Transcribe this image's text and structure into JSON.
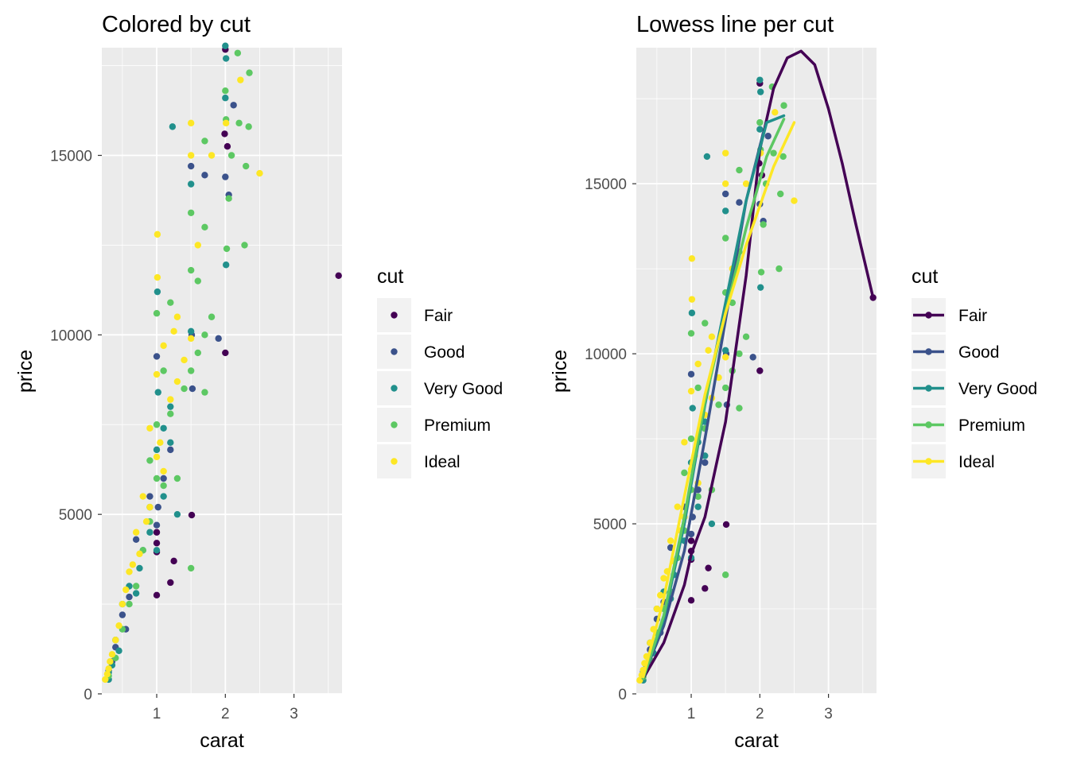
{
  "palette": {
    "Fair": "#440154",
    "Good": "#3b528b",
    "Very Good": "#21908c",
    "Premium": "#5dc863",
    "Ideal": "#fde725",
    "panel_background": "#ebebeb",
    "grid": "#ffffff",
    "tick_text": "#4d4d4d"
  },
  "chart_data": [
    {
      "type": "scatter",
      "title": "Colored by cut",
      "xlabel": "carat",
      "ylabel": "price",
      "xlim": [
        0.2,
        3.7
      ],
      "ylim": [
        0,
        18000
      ],
      "xticks": [
        1,
        2,
        3
      ],
      "yticks": [
        0,
        5000,
        10000,
        15000
      ],
      "grid": true,
      "legend": {
        "title": "cut",
        "position": "right",
        "keys": "point",
        "entries": [
          "Fair",
          "Good",
          "Very Good",
          "Premium",
          "Ideal"
        ]
      },
      "series": [
        {
          "name": "Fair",
          "points": [
            [
              2.0,
              17950
            ],
            [
              1.99,
              15600
            ],
            [
              2.0,
              9500
            ],
            [
              1.51,
              4980
            ],
            [
              1.25,
              3700
            ],
            [
              1.2,
              3100
            ],
            [
              1.0,
              2750
            ],
            [
              1.0,
              3950
            ],
            [
              1.0,
              4500
            ],
            [
              3.65,
              11650
            ],
            [
              2.03,
              15250
            ],
            [
              1.0,
              4200
            ]
          ]
        },
        {
          "name": "Good",
          "points": [
            [
              2.12,
              16400
            ],
            [
              1.7,
              14450
            ],
            [
              2.05,
              13900
            ],
            [
              2.0,
              14400
            ],
            [
              1.5,
              14700
            ],
            [
              1.9,
              9900
            ],
            [
              1.51,
              10000
            ],
            [
              1.0,
              9400
            ],
            [
              1.0,
              4700
            ],
            [
              0.7,
              4300
            ],
            [
              0.9,
              5500
            ],
            [
              1.02,
              5200
            ],
            [
              0.5,
              2200
            ],
            [
              0.55,
              1800
            ],
            [
              0.35,
              900
            ],
            [
              1.2,
              6800
            ],
            [
              0.4,
              1300
            ],
            [
              0.6,
              2700
            ],
            [
              0.3,
              650
            ],
            [
              1.1,
              6000
            ],
            [
              1.52,
              8500
            ]
          ]
        },
        {
          "name": "Very Good",
          "points": [
            [
              2.0,
              18050
            ],
            [
              2.01,
              17700
            ],
            [
              1.23,
              15800
            ],
            [
              1.5,
              14200
            ],
            [
              2.0,
              16600
            ],
            [
              2.01,
              11950
            ],
            [
              1.01,
              11200
            ],
            [
              1.2,
              8000
            ],
            [
              1.5,
              10100
            ],
            [
              1.02,
              8400
            ],
            [
              1.1,
              7400
            ],
            [
              0.9,
              5200
            ],
            [
              0.8,
              4000
            ],
            [
              1.0,
              6800
            ],
            [
              0.6,
              3000
            ],
            [
              0.5,
              2500
            ],
            [
              0.4,
              1500
            ],
            [
              0.3,
              600
            ],
            [
              0.35,
              800
            ],
            [
              1.3,
              5000
            ],
            [
              1.0,
              4000
            ],
            [
              0.75,
              3500
            ],
            [
              0.7,
              2800
            ],
            [
              1.1,
              5500
            ],
            [
              0.9,
              4500
            ],
            [
              0.3,
              400
            ],
            [
              0.45,
              1200
            ],
            [
              1.2,
              7000
            ]
          ]
        },
        {
          "name": "Premium",
          "points": [
            [
              2.18,
              17850
            ],
            [
              2.35,
              17300
            ],
            [
              2.0,
              16800
            ],
            [
              2.34,
              15800
            ],
            [
              2.2,
              15900
            ],
            [
              1.7,
              15400
            ],
            [
              2.09,
              15000
            ],
            [
              2.28,
              12500
            ],
            [
              2.02,
              12400
            ],
            [
              2.05,
              13800
            ],
            [
              1.5,
              13400
            ],
            [
              1.7,
              13000
            ],
            [
              1.5,
              11800
            ],
            [
              1.6,
              11500
            ],
            [
              1.2,
              10900
            ],
            [
              1.0,
              10600
            ],
            [
              1.7,
              10000
            ],
            [
              1.5,
              9000
            ],
            [
              1.7,
              8400
            ],
            [
              1.5,
              3500
            ],
            [
              1.2,
              7800
            ],
            [
              1.0,
              7500
            ],
            [
              0.9,
              6500
            ],
            [
              1.3,
              6000
            ],
            [
              1.1,
              5800
            ],
            [
              0.8,
              4000
            ],
            [
              0.9,
              4800
            ],
            [
              0.6,
              2500
            ],
            [
              0.5,
              1800
            ],
            [
              0.4,
              1000
            ],
            [
              0.7,
              3000
            ],
            [
              1.4,
              8500
            ],
            [
              1.6,
              9500
            ],
            [
              1.1,
              9000
            ],
            [
              0.3,
              500
            ],
            [
              1.0,
              6000
            ],
            [
              1.8,
              10500
            ],
            [
              2.3,
              14700
            ],
            [
              2.01,
              16000
            ]
          ]
        },
        {
          "name": "Ideal",
          "points": [
            [
              2.22,
              17100
            ],
            [
              2.01,
              15900
            ],
            [
              1.5,
              15900
            ],
            [
              1.8,
              15000
            ],
            [
              2.5,
              14500
            ],
            [
              1.5,
              15000
            ],
            [
              1.6,
              12500
            ],
            [
              1.01,
              12800
            ],
            [
              1.01,
              11600
            ],
            [
              1.3,
              10500
            ],
            [
              1.5,
              9900
            ],
            [
              1.1,
              9700
            ],
            [
              1.0,
              8900
            ],
            [
              1.2,
              8200
            ],
            [
              0.9,
              7400
            ],
            [
              1.0,
              6600
            ],
            [
              0.8,
              5500
            ],
            [
              0.7,
              4500
            ],
            [
              0.6,
              3400
            ],
            [
              0.5,
              2500
            ],
            [
              0.45,
              1900
            ],
            [
              0.4,
              1500
            ],
            [
              0.35,
              1100
            ],
            [
              0.3,
              700
            ],
            [
              0.25,
              400
            ],
            [
              1.3,
              8700
            ],
            [
              1.1,
              6200
            ],
            [
              0.9,
              5200
            ],
            [
              0.75,
              3900
            ],
            [
              0.55,
              2900
            ],
            [
              0.32,
              900
            ],
            [
              0.28,
              550
            ],
            [
              1.05,
              7000
            ],
            [
              1.4,
              9300
            ],
            [
              0.65,
              3600
            ],
            [
              1.25,
              10100
            ],
            [
              0.85,
              4800
            ]
          ]
        }
      ]
    },
    {
      "type": "scatter",
      "title": "Lowess line per cut",
      "xlabel": "carat",
      "ylabel": "price",
      "xlim": [
        0.2,
        3.7
      ],
      "ylim": [
        0,
        19000
      ],
      "xticks": [
        1,
        2,
        3
      ],
      "yticks": [
        0,
        5000,
        10000,
        15000
      ],
      "grid": true,
      "legend": {
        "title": "cut",
        "position": "right",
        "keys": "point-line",
        "entries": [
          "Fair",
          "Good",
          "Very Good",
          "Premium",
          "Ideal"
        ]
      },
      "points_same_as_left_panel": true,
      "lines": [
        {
          "name": "Fair",
          "points": [
            [
              0.3,
              450
            ],
            [
              0.6,
              1500
            ],
            [
              0.9,
              3200
            ],
            [
              1.0,
              4100
            ],
            [
              1.2,
              5200
            ],
            [
              1.5,
              8000
            ],
            [
              1.8,
              12300
            ],
            [
              2.0,
              16000
            ],
            [
              2.2,
              17800
            ],
            [
              2.4,
              18700
            ],
            [
              2.6,
              18900
            ],
            [
              2.8,
              18500
            ],
            [
              3.0,
              17200
            ],
            [
              3.2,
              15600
            ],
            [
              3.4,
              13800
            ],
            [
              3.65,
              11650
            ]
          ]
        },
        {
          "name": "Good",
          "points": [
            [
              0.3,
              500
            ],
            [
              0.6,
              2000
            ],
            [
              0.9,
              4200
            ],
            [
              1.2,
              7500
            ],
            [
              1.5,
              11000
            ],
            [
              1.8,
              14500
            ],
            [
              2.05,
              16500
            ]
          ]
        },
        {
          "name": "Very Good",
          "points": [
            [
              0.3,
              450
            ],
            [
              0.6,
              2200
            ],
            [
              0.9,
              5000
            ],
            [
              1.2,
              8500
            ],
            [
              1.5,
              11500
            ],
            [
              1.8,
              14500
            ],
            [
              2.1,
              16800
            ],
            [
              2.35,
              17000
            ]
          ]
        },
        {
          "name": "Premium",
          "points": [
            [
              0.3,
              450
            ],
            [
              0.6,
              2300
            ],
            [
              0.9,
              5200
            ],
            [
              1.2,
              8600
            ],
            [
              1.5,
              11200
            ],
            [
              1.8,
              13700
            ],
            [
              2.1,
              15800
            ],
            [
              2.35,
              16900
            ]
          ]
        },
        {
          "name": "Ideal",
          "points": [
            [
              0.3,
              500
            ],
            [
              0.6,
              2800
            ],
            [
              0.9,
              5800
            ],
            [
              1.2,
              8800
            ],
            [
              1.5,
              11200
            ],
            [
              1.8,
              13200
            ],
            [
              2.2,
              15500
            ],
            [
              2.5,
              16800
            ]
          ]
        }
      ]
    }
  ]
}
